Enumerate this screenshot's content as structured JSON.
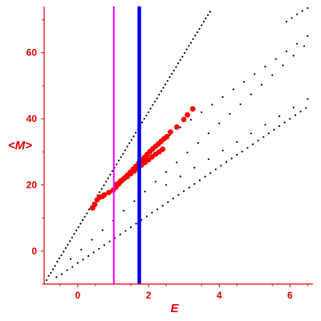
{
  "chart_data": {
    "type": "scatter",
    "title": "",
    "xlabel": "E",
    "ylabel": "<M>",
    "xlim": [
      -0.95,
      6.65
    ],
    "ylim": [
      -10,
      74
    ],
    "xticks": [
      0,
      2,
      4,
      6
    ],
    "yticks": [
      0,
      20,
      40,
      60
    ],
    "xtick_labels": [
      "0",
      "2",
      "4",
      "6"
    ],
    "ytick_labels": [
      "0",
      "20",
      "40",
      "60"
    ],
    "grid": false,
    "legend": "none",
    "axis_color": "#e00000",
    "vlines": [
      {
        "x": 1.02,
        "color": "#ff00ff"
      },
      {
        "x": 1.74,
        "color": "#0000ff"
      }
    ],
    "series": [
      {
        "color": "#000000",
        "style": "small-dots",
        "points": [
          [
            -0.88,
            -8.8
          ],
          [
            -0.82,
            -7.5
          ],
          [
            -0.76,
            -6.6
          ],
          [
            -0.7,
            -5.5
          ],
          [
            -0.64,
            -4.5
          ],
          [
            -0.58,
            -3.2
          ],
          [
            -0.52,
            -2.2
          ],
          [
            -0.46,
            -1.3
          ],
          [
            -0.4,
            -0.2
          ],
          [
            -0.34,
            0.9
          ],
          [
            -0.28,
            1.9
          ],
          [
            -0.22,
            3.0
          ],
          [
            -0.16,
            4.1
          ],
          [
            -0.1,
            5.2
          ],
          [
            -0.04,
            6.2
          ],
          [
            0.02,
            7.2
          ],
          [
            0.08,
            8.3
          ],
          [
            0.14,
            9.4
          ],
          [
            0.2,
            10.4
          ],
          [
            0.26,
            11.4
          ],
          [
            0.32,
            12.6
          ],
          [
            0.38,
            13.6
          ],
          [
            0.44,
            14.6
          ],
          [
            0.5,
            15.7
          ],
          [
            0.56,
            16.8
          ],
          [
            0.62,
            17.8
          ],
          [
            0.68,
            18.8
          ],
          [
            0.74,
            19.9
          ],
          [
            0.8,
            21.0
          ],
          [
            0.86,
            22.0
          ],
          [
            0.92,
            23.1
          ],
          [
            0.98,
            24.2
          ],
          [
            1.04,
            25.2
          ],
          [
            1.1,
            26.2
          ],
          [
            1.16,
            27.4
          ],
          [
            1.22,
            28.4
          ],
          [
            1.28,
            29.4
          ],
          [
            1.34,
            30.5
          ],
          [
            1.4,
            31.6
          ],
          [
            1.46,
            32.6
          ],
          [
            1.52,
            33.6
          ],
          [
            1.58,
            34.7
          ],
          [
            1.64,
            35.8
          ],
          [
            1.7,
            36.8
          ],
          [
            1.76,
            37.8
          ],
          [
            1.82,
            38.9
          ],
          [
            1.88,
            40.0
          ],
          [
            1.94,
            41.0
          ],
          [
            2.0,
            42.0
          ],
          [
            2.06,
            43.1
          ],
          [
            2.12,
            44.2
          ],
          [
            2.18,
            45.2
          ],
          [
            2.24,
            46.2
          ],
          [
            2.3,
            47.3
          ],
          [
            2.36,
            48.4
          ],
          [
            2.42,
            49.4
          ],
          [
            2.48,
            50.4
          ],
          [
            2.54,
            51.5
          ],
          [
            2.6,
            52.6
          ],
          [
            2.66,
            53.6
          ],
          [
            2.72,
            54.6
          ],
          [
            2.78,
            55.7
          ],
          [
            2.84,
            56.8
          ],
          [
            2.9,
            57.8
          ],
          [
            2.96,
            58.8
          ],
          [
            3.02,
            59.9
          ],
          [
            3.08,
            61.0
          ],
          [
            3.14,
            62.0
          ],
          [
            3.2,
            63.0
          ],
          [
            3.26,
            64.1
          ],
          [
            3.32,
            65.2
          ],
          [
            3.38,
            66.2
          ],
          [
            3.44,
            67.2
          ],
          [
            3.5,
            68.3
          ],
          [
            3.56,
            69.4
          ],
          [
            3.62,
            70.4
          ],
          [
            3.68,
            71.4
          ],
          [
            3.74,
            72.4
          ],
          [
            5.9,
            69.4
          ],
          [
            6.05,
            70.5
          ],
          [
            6.2,
            71.6
          ],
          [
            6.35,
            72.6
          ],
          [
            6.5,
            73.5
          ],
          [
            -0.6,
            -7.9
          ],
          [
            -0.45,
            -7.0
          ],
          [
            -0.3,
            -5.8
          ],
          [
            -0.15,
            -4.8
          ],
          [
            0.0,
            -3.6
          ],
          [
            0.15,
            -2.6
          ],
          [
            0.3,
            -1.5
          ],
          [
            0.45,
            -0.4
          ],
          [
            0.6,
            0.7
          ],
          [
            0.75,
            1.8
          ],
          [
            0.9,
            2.9
          ],
          [
            1.05,
            3.9
          ],
          [
            1.2,
            5.0
          ],
          [
            1.35,
            6.1
          ],
          [
            1.5,
            7.2
          ],
          [
            1.65,
            8.3
          ],
          [
            1.8,
            9.4
          ],
          [
            1.95,
            10.5
          ],
          [
            2.1,
            11.6
          ],
          [
            2.25,
            12.6
          ],
          [
            2.4,
            13.7
          ],
          [
            2.55,
            14.8
          ],
          [
            2.7,
            15.9
          ],
          [
            2.85,
            17.0
          ],
          [
            3.0,
            18.1
          ],
          [
            3.15,
            19.2
          ],
          [
            3.3,
            20.3
          ],
          [
            3.45,
            21.4
          ],
          [
            3.6,
            22.5
          ],
          [
            3.75,
            23.6
          ],
          [
            3.9,
            24.7
          ],
          [
            4.05,
            25.8
          ],
          [
            4.2,
            26.9
          ],
          [
            4.35,
            28.0
          ],
          [
            4.5,
            29.1
          ],
          [
            4.65,
            30.1
          ],
          [
            4.8,
            31.2
          ],
          [
            4.95,
            32.3
          ],
          [
            5.1,
            33.4
          ],
          [
            5.25,
            34.5
          ],
          [
            5.4,
            35.6
          ],
          [
            5.55,
            36.7
          ],
          [
            5.7,
            37.8
          ],
          [
            5.85,
            38.9
          ],
          [
            6.0,
            40.0
          ],
          [
            6.15,
            41.1
          ],
          [
            6.3,
            42.2
          ],
          [
            6.45,
            43.3
          ],
          [
            -0.2,
            -2.4
          ],
          [
            0.1,
            0.4
          ],
          [
            0.4,
            3.4
          ],
          [
            0.7,
            6.3
          ],
          [
            1.0,
            9.2
          ],
          [
            1.3,
            12.2
          ],
          [
            1.6,
            15.1
          ],
          [
            1.9,
            18.0
          ],
          [
            2.2,
            21.0
          ],
          [
            2.5,
            23.9
          ],
          [
            2.8,
            26.8
          ],
          [
            3.1,
            29.8
          ],
          [
            3.4,
            32.7
          ],
          [
            3.7,
            35.6
          ],
          [
            4.0,
            38.6
          ],
          [
            4.3,
            41.5
          ],
          [
            4.6,
            44.4
          ],
          [
            4.9,
            47.4
          ],
          [
            5.2,
            50.3
          ],
          [
            5.5,
            53.2
          ],
          [
            5.8,
            56.2
          ],
          [
            6.1,
            59.1
          ],
          [
            6.4,
            62.0
          ],
          [
            2.0,
            30.5
          ],
          [
            2.3,
            32.8
          ],
          [
            2.6,
            35.1
          ],
          [
            2.9,
            37.4
          ],
          [
            3.2,
            39.7
          ],
          [
            3.5,
            42.0
          ],
          [
            3.8,
            44.3
          ],
          [
            4.1,
            46.6
          ],
          [
            4.4,
            48.9
          ],
          [
            4.7,
            51.2
          ],
          [
            5.0,
            53.5
          ],
          [
            5.3,
            55.8
          ],
          [
            5.6,
            58.1
          ],
          [
            5.9,
            60.4
          ],
          [
            6.2,
            62.7
          ],
          [
            6.5,
            65.0
          ],
          [
            2.5,
            20.0
          ],
          [
            2.9,
            22.6
          ],
          [
            3.3,
            25.2
          ],
          [
            3.7,
            27.8
          ],
          [
            4.1,
            30.4
          ],
          [
            4.5,
            33.0
          ],
          [
            4.9,
            35.6
          ],
          [
            5.3,
            38.2
          ],
          [
            5.7,
            40.8
          ],
          [
            6.1,
            43.4
          ],
          [
            6.5,
            46.0
          ]
        ]
      },
      {
        "color": "#ff0000",
        "style": "large-dots",
        "points": [
          [
            0.55,
            15.5
          ],
          [
            0.62,
            16.3
          ],
          [
            0.75,
            17.0
          ],
          [
            0.88,
            17.7
          ],
          [
            1.0,
            18.4
          ],
          [
            1.08,
            19.3
          ],
          [
            1.16,
            20.3
          ],
          [
            1.24,
            21.3
          ],
          [
            1.32,
            22.1
          ],
          [
            1.4,
            22.9
          ],
          [
            1.48,
            23.8
          ],
          [
            1.56,
            24.7
          ],
          [
            1.64,
            25.6
          ],
          [
            1.72,
            26.5
          ],
          [
            1.8,
            27.4
          ],
          [
            1.88,
            28.3
          ],
          [
            1.96,
            29.2
          ],
          [
            2.04,
            30.1
          ],
          [
            2.12,
            30.9
          ],
          [
            2.2,
            31.7
          ],
          [
            2.28,
            32.4
          ],
          [
            2.36,
            33.2
          ],
          [
            2.44,
            34.0
          ],
          [
            2.52,
            34.6
          ],
          [
            1.1,
            20.2
          ],
          [
            1.2,
            21.0
          ],
          [
            1.3,
            21.8
          ],
          [
            1.4,
            22.5
          ],
          [
            1.5,
            23.4
          ],
          [
            1.6,
            24.2
          ],
          [
            1.7,
            25.2
          ],
          [
            1.8,
            26.0
          ],
          [
            1.9,
            26.8
          ],
          [
            2.0,
            27.6
          ],
          [
            2.1,
            28.5
          ],
          [
            2.2,
            29.3
          ],
          [
            2.3,
            30.0
          ],
          [
            2.4,
            30.8
          ],
          [
            0.42,
            13.0
          ],
          [
            0.48,
            14.1
          ],
          [
            0.7,
            16.5
          ],
          [
            2.62,
            36.0
          ],
          [
            2.8,
            37.5
          ],
          [
            3.0,
            39.8
          ],
          [
            3.1,
            41.2
          ],
          [
            3.25,
            43.0
          ]
        ]
      }
    ]
  }
}
